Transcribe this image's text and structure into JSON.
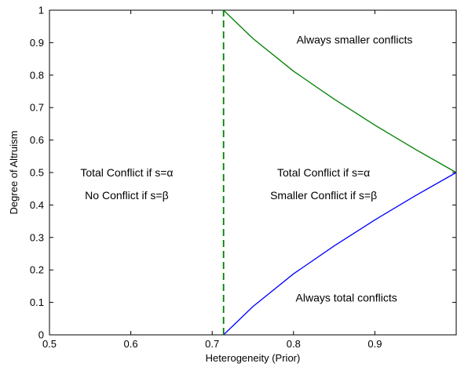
{
  "chart_data": {
    "type": "line",
    "title": "",
    "xlabel": "Heterogeneity (Prior)",
    "ylabel": "Degree of Altruism",
    "xlim": [
      0.5,
      1.0
    ],
    "ylim": [
      0,
      1
    ],
    "xticks": [
      "0.5",
      "0.6",
      "0.7",
      "0.8",
      "0.9"
    ],
    "xtick_values": [
      0.5,
      0.6,
      0.7,
      0.8,
      0.9
    ],
    "yticks": [
      "0",
      "0.1",
      "0.2",
      "0.3",
      "0.4",
      "0.5",
      "0.6",
      "0.7",
      "0.8",
      "0.9",
      "1"
    ],
    "ytick_values": [
      0,
      0.1,
      0.2,
      0.3,
      0.4,
      0.5,
      0.6,
      0.7,
      0.8,
      0.9,
      1.0
    ],
    "grid": false,
    "series": [
      {
        "color": "#008000",
        "style": "solid",
        "x": [
          0.714,
          0.75,
          0.8,
          0.85,
          0.9,
          0.95,
          1.0
        ],
        "y": [
          1.0,
          0.913,
          0.812,
          0.726,
          0.646,
          0.571,
          0.5
        ]
      },
      {
        "color": "#0000ff",
        "style": "solid",
        "x": [
          0.714,
          0.75,
          0.8,
          0.85,
          0.9,
          0.95,
          1.0
        ],
        "y": [
          0.0,
          0.087,
          0.188,
          0.274,
          0.354,
          0.429,
          0.5
        ]
      },
      {
        "color": "#008000",
        "style": "dashed",
        "x": [
          0.714,
          0.714
        ],
        "y": [
          0,
          1
        ]
      }
    ],
    "annotations": [
      {
        "text": "Always smaller conflicts",
        "x": 0.875,
        "y": 0.91
      },
      {
        "text": "Total Conflict if s=α",
        "x": 0.595,
        "y": 0.5
      },
      {
        "text": "No Conflict if s=β",
        "x": 0.595,
        "y": 0.43
      },
      {
        "text": "Total Conflict if s=α",
        "x": 0.837,
        "y": 0.5
      },
      {
        "text": "Smaller Conflict if s=β",
        "x": 0.837,
        "y": 0.43
      },
      {
        "text": "Always total conflicts",
        "x": 0.865,
        "y": 0.115
      }
    ]
  }
}
